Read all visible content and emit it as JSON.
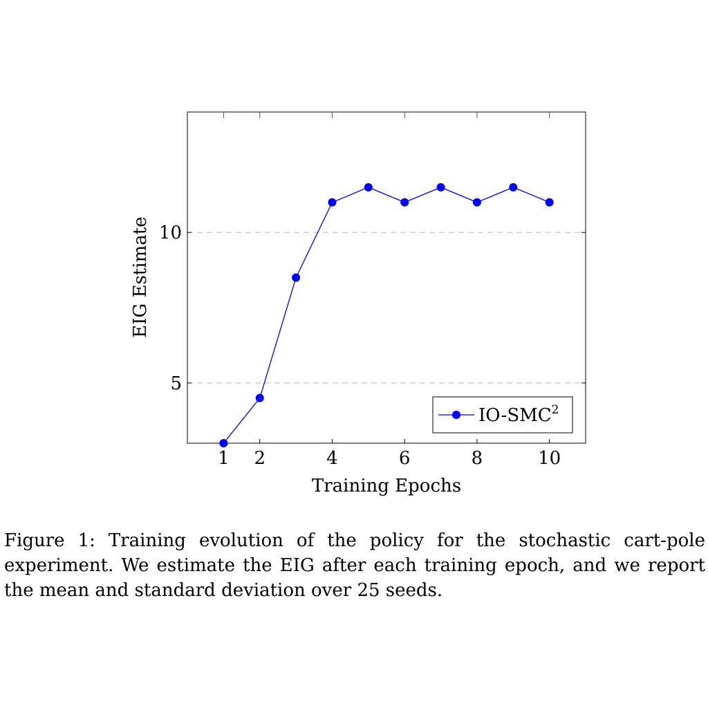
{
  "chart_data": {
    "type": "line",
    "title": "",
    "xlabel": "Training Epochs",
    "ylabel": "EIG Estimate",
    "xlim": [
      0,
      11
    ],
    "ylim": [
      3,
      14
    ],
    "x_ticks": [
      1,
      2,
      4,
      6,
      8,
      10
    ],
    "x_tick_labels": [
      "1",
      "2",
      "4",
      "6",
      "8",
      "10"
    ],
    "x_minor_ticks": [
      1,
      2,
      4,
      6,
      8,
      10
    ],
    "y_ticks": [
      5,
      10
    ],
    "y_tick_labels": [
      "5",
      "10"
    ],
    "grid": "horizontal dashed",
    "legend_position": "bottom-right",
    "series": [
      {
        "name": "IO-SMC",
        "name_superscript": "2",
        "color": "#0000ff",
        "marker": "circle",
        "x": [
          1,
          2,
          3,
          4,
          5,
          6,
          7,
          8,
          9,
          10
        ],
        "values": [
          3.0,
          4.5,
          8.5,
          11.0,
          11.5,
          11.0,
          11.5,
          11.0,
          11.5,
          11.0
        ]
      }
    ]
  },
  "caption": {
    "text": "Figure 1: Training evolution of the policy for the stochastic cart-pole experiment. We estimate the EIG after each training epoch, and we report the mean and standard deviation over 25 seeds."
  }
}
